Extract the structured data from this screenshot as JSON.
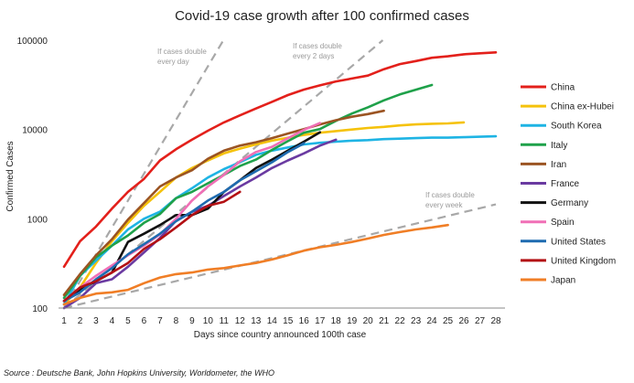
{
  "chart_data": {
    "type": "line",
    "title": "Covid-19 case growth after 100 confirmed cases",
    "xlabel": "Days since country announced 100th case",
    "ylabel": "Confirmed Cases",
    "yscale": "log",
    "ylim": [
      100,
      100000
    ],
    "xlim": [
      1,
      28
    ],
    "x_ticks": [
      1,
      2,
      3,
      4,
      5,
      6,
      7,
      8,
      9,
      10,
      11,
      12,
      13,
      14,
      15,
      16,
      17,
      18,
      19,
      20,
      21,
      22,
      23,
      24,
      25,
      26,
      27,
      28
    ],
    "y_ticks": [
      100,
      1000,
      10000,
      100000
    ],
    "y_tick_labels": [
      "100",
      "1000",
      "10000",
      "100000"
    ],
    "legend_position": "right",
    "series": [
      {
        "name": "China",
        "color": "#e3201b",
        "values": [
          290,
          560,
          820,
          1300,
          2000,
          2800,
          4500,
          6000,
          7700,
          9700,
          12000,
          14400,
          17200,
          20400,
          24300,
          28000,
          31200,
          34500,
          37200,
          40200,
          47400,
          54000,
          58400,
          63600,
          66000,
          69500,
          71400,
          73000
        ]
      },
      {
        "name": "China ex-Hubei",
        "color": "#f5c20b",
        "values": [
          110,
          170,
          320,
          560,
          900,
          1400,
          2000,
          2900,
          3700,
          4500,
          5400,
          6100,
          6800,
          7500,
          8100,
          8700,
          9200,
          9600,
          10000,
          10400,
          10700,
          11100,
          11400,
          11600,
          11700,
          12000
        ]
      },
      {
        "name": "South Korea",
        "color": "#1eb4e4",
        "values": [
          110,
          230,
          340,
          500,
          760,
          1000,
          1200,
          1700,
          2200,
          2900,
          3600,
          4300,
          5200,
          5800,
          6300,
          6800,
          7100,
          7300,
          7500,
          7600,
          7800,
          7900,
          8000,
          8100,
          8100,
          8200,
          8300,
          8400
        ]
      },
      {
        "name": "Italy",
        "color": "#1fa14a",
        "values": [
          130,
          230,
          370,
          500,
          650,
          900,
          1130,
          1700,
          2000,
          2500,
          3100,
          3900,
          4600,
          5900,
          7400,
          9200,
          10100,
          12500,
          15100,
          17700,
          21200,
          24700,
          27900,
          31500
        ]
      },
      {
        "name": "Iran",
        "color": "#9b5422",
        "values": [
          140,
          240,
          390,
          590,
          980,
          1500,
          2300,
          2900,
          3500,
          4700,
          5800,
          6600,
          7200,
          8000,
          9000,
          10100,
          11400,
          12700,
          13900,
          14900,
          16200
        ]
      },
      {
        "name": "France",
        "color": "#6a3aa1",
        "values": [
          100,
          130,
          190,
          210,
          290,
          420,
          610,
          950,
          1200,
          1400,
          1800,
          2300,
          2900,
          3700,
          4500,
          5400,
          6600,
          7700
        ]
      },
      {
        "name": "Germany",
        "color": "#111111",
        "values": [
          120,
          160,
          200,
          250,
          550,
          680,
          850,
          1100,
          1100,
          1300,
          2000,
          2700,
          3700,
          4600,
          5800,
          7300,
          9300
        ]
      },
      {
        "name": "Spain",
        "color": "#f06fb6",
        "values": [
          120,
          170,
          230,
          300,
          390,
          500,
          670,
          1000,
          1600,
          2300,
          3100,
          4400,
          5600,
          6400,
          8000,
          9900,
          11800
        ]
      },
      {
        "name": "United States",
        "color": "#1e6bb0",
        "values": [
          120,
          150,
          210,
          280,
          400,
          520,
          680,
          940,
          1200,
          1600,
          2000,
          2700,
          3400,
          4300,
          5600,
          7000
        ]
      },
      {
        "name": "United Kingdom",
        "color": "#b31014",
        "values": [
          120,
          170,
          200,
          250,
          320,
          460,
          590,
          800,
          1100,
          1400,
          1550,
          2000
        ]
      },
      {
        "name": "Japan",
        "color": "#f07e26",
        "values": [
          110,
          130,
          145,
          150,
          160,
          190,
          220,
          240,
          250,
          270,
          280,
          300,
          320,
          350,
          390,
          440,
          480,
          510,
          550,
          600,
          660,
          710,
          760,
          800,
          850
        ]
      }
    ],
    "reference_lines": [
      {
        "label_line1": "If cases double",
        "label_line2": "every day",
        "doubling_days": 1
      },
      {
        "label_line1": "If cases double",
        "label_line2": "every  2 days",
        "doubling_days": 2
      },
      {
        "label_line1": "If cases double",
        "label_line2": "every  week",
        "doubling_days": 7
      }
    ],
    "source": "Source : Deutsche Bank, John Hopkins University, Worldometer, the WHO"
  }
}
